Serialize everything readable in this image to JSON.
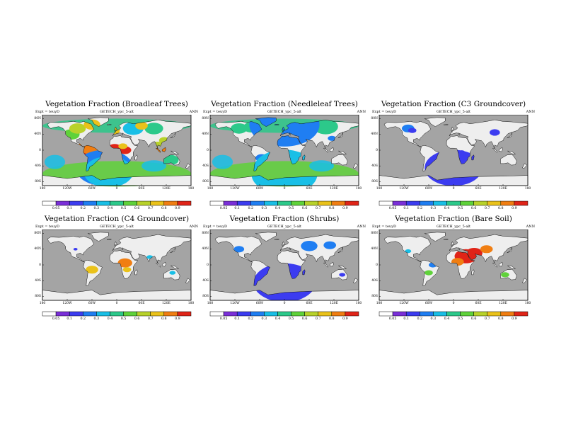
{
  "panels": [
    {
      "title": "Vegetation Fraction (Broadleaf Trees)",
      "expt": "Expt = teuyD",
      "run": "GETECH_ypc_5-alt",
      "season": "ANN",
      "blobs": [
        [
          -5,
          30,
          6,
          0.9
        ],
        [
          -58,
          60,
          -5,
          0.92
        ],
        [
          -62,
          62,
          10,
          0.8
        ],
        [
          -52,
          50,
          -25,
          0.6
        ],
        [
          20,
          30,
          0,
          0.92
        ],
        [
          15,
          22,
          10,
          0.7
        ],
        [
          100,
          35,
          10,
          0.6
        ],
        [
          110,
          35,
          -2,
          0.85
        ],
        [
          115,
          25,
          25,
          0.65
        ],
        [
          -110,
          40,
          40,
          0.55
        ],
        [
          -95,
          40,
          55,
          0.6
        ],
        [
          130,
          40,
          -25,
          0.4
        ],
        [
          40,
          50,
          55,
          0.35
        ],
        [
          90,
          45,
          55,
          0.45
        ],
        [
          -30,
          140,
          -45,
          0.2
        ],
        [
          -20,
          120,
          -55,
          0.3
        ],
        [
          -60,
          40,
          65,
          0.75
        ],
        [
          -10,
          35,
          50,
          0.7
        ],
        [
          60,
          30,
          62,
          0.7
        ]
      ],
      "ocean": true
    },
    {
      "title": "Vegetation Fraction (Needleleaf Trees)",
      "expt": "Expt = teuyD",
      "run": "GETECH_ypc_5-alt",
      "season": "ANN",
      "blobs": [
        [
          -110,
          40,
          55,
          0.45
        ],
        [
          -80,
          40,
          58,
          0.4
        ],
        [
          40,
          50,
          58,
          0.4
        ],
        [
          100,
          60,
          60,
          0.45
        ],
        [
          20,
          25,
          48,
          0.3
        ],
        [
          -55,
          30,
          -20,
          0.2
        ],
        [
          20,
          20,
          -15,
          0.15
        ],
        [
          115,
          20,
          30,
          0.25
        ],
        [
          0,
          160,
          -60,
          0.35
        ],
        [
          0,
          150,
          -48,
          0.3
        ],
        [
          0,
          170,
          65,
          0.25
        ]
      ],
      "ocean": true
    },
    {
      "title": "Vegetation Fraction (C3 Groundcover)",
      "expt": "Expt = teuyD",
      "run": "GETECH_ypc_5-alt",
      "season": "ANN",
      "blobs": [
        [
          -110,
          30,
          55,
          0.22
        ],
        [
          -100,
          20,
          50,
          0.15
        ],
        [
          20,
          15,
          -5,
          0.12
        ],
        [
          100,
          25,
          45,
          0.12
        ],
        [
          0,
          140,
          -45,
          0.1
        ]
      ],
      "ocean": false
    },
    {
      "title": "Vegetation Fraction (C4 Groundcover)",
      "expt": "Expt = teuyD",
      "run": "GETECH_ypc_5-alt",
      "season": "ANN",
      "blobs": [
        [
          -60,
          30,
          -12,
          0.75
        ],
        [
          20,
          35,
          5,
          0.85
        ],
        [
          25,
          20,
          -12,
          0.7
        ],
        [
          80,
          15,
          20,
          0.35
        ],
        [
          -100,
          10,
          40,
          0.18
        ],
        [
          135,
          15,
          -20,
          0.35
        ]
      ],
      "ocean": false
    },
    {
      "title": "Vegetation Fraction (Shrubs)",
      "expt": "Expt = teuyD",
      "run": "GETECH_ypc_5-alt",
      "season": "ANN",
      "blobs": [
        [
          -110,
          25,
          40,
          0.2
        ],
        [
          60,
          40,
          48,
          0.2
        ],
        [
          110,
          30,
          50,
          0.25
        ],
        [
          20,
          15,
          -22,
          0.15
        ],
        [
          140,
          15,
          -25,
          0.18
        ],
        [
          0,
          150,
          -45,
          0.1
        ]
      ],
      "ocean": false
    },
    {
      "title": "Vegetation Fraction (Bare Soil)",
      "expt": "Expt = teuyD",
      "run": "GETECH_ypc_5-alt",
      "season": "ANN",
      "blobs": [
        [
          30,
          55,
          22,
          0.92
        ],
        [
          50,
          40,
          30,
          0.9
        ],
        [
          80,
          30,
          40,
          0.8
        ],
        [
          10,
          30,
          8,
          0.85
        ],
        [
          -60,
          20,
          -20,
          0.55
        ],
        [
          125,
          20,
          -25,
          0.55
        ],
        [
          -110,
          15,
          35,
          0.3
        ],
        [
          -50,
          20,
          0,
          0.25
        ]
      ],
      "ocean": false
    }
  ],
  "colorbar": {
    "labels": [
      "0.05",
      "0.1",
      "0.2",
      "0.3",
      "0.4",
      "0.5",
      "0.6",
      "0.7",
      "0.8",
      "0.9"
    ],
    "colors": [
      "#ffffff",
      "#7a2fd8",
      "#3c3cf0",
      "#1f7ef2",
      "#19bfe6",
      "#2cc98a",
      "#5fd23a",
      "#b8d22a",
      "#eac21a",
      "#f07e12",
      "#e02418"
    ]
  },
  "axes": {
    "lat_labels": [
      "80N",
      "40N",
      "0",
      "40S",
      "80S"
    ],
    "lon_labels": [
      "180",
      "120W",
      "60W",
      "0",
      "60E",
      "120E",
      "180"
    ]
  },
  "colors": {
    "ocean": "#a4a4a4",
    "land_fill": "#eeeeee",
    "coast": "#000000"
  }
}
